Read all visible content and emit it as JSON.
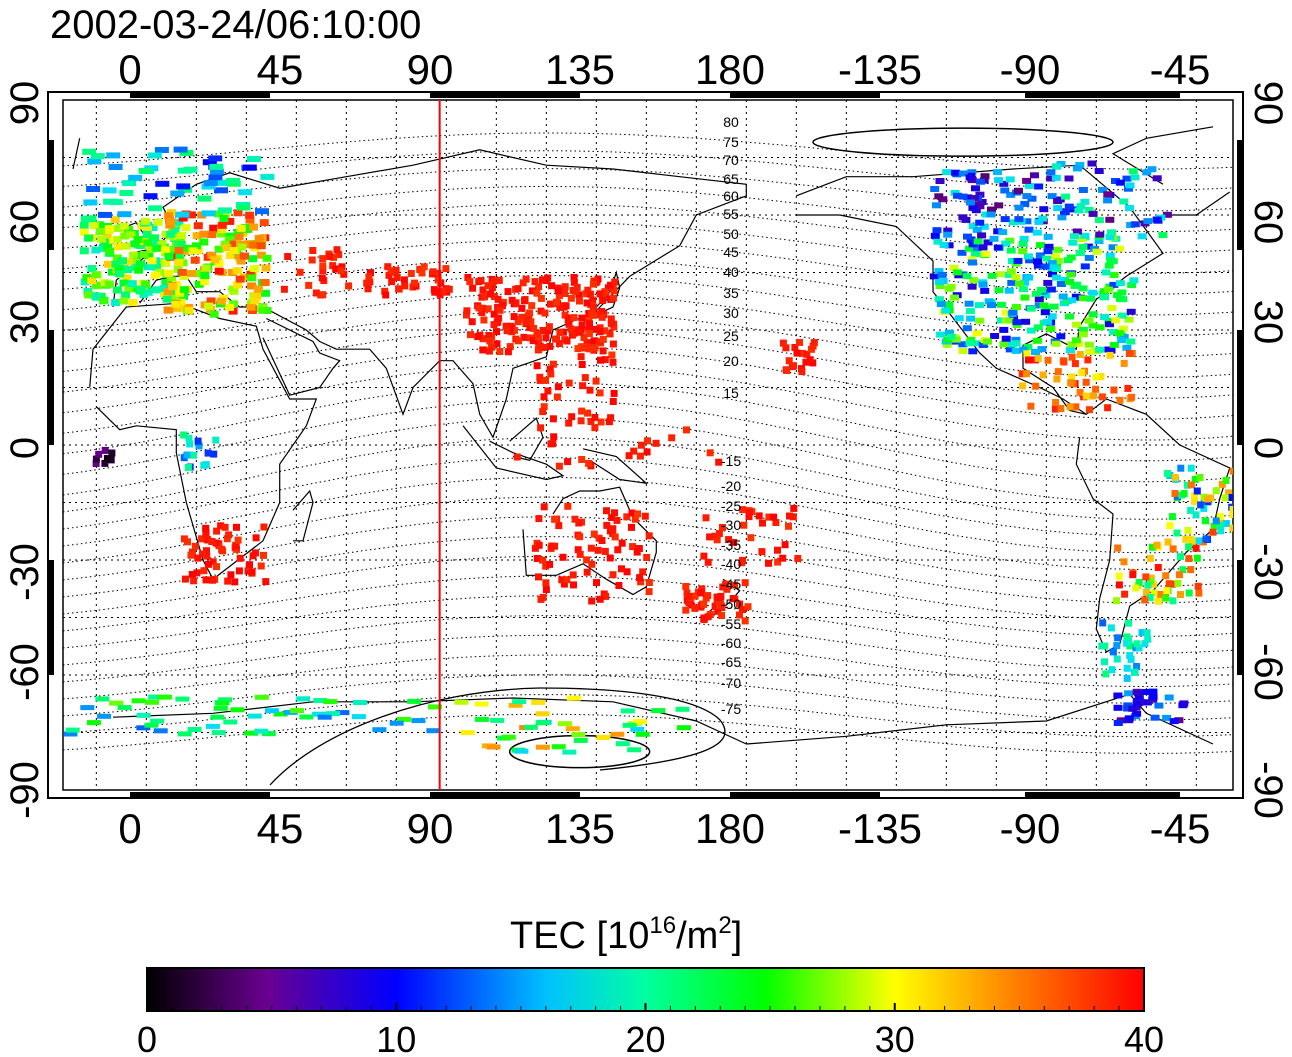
{
  "title": "2002-03-24/06:10:00",
  "map": {
    "top_lon_labels": [
      "0",
      "45",
      "90",
      "135",
      "180",
      "-135",
      "-90",
      "-45"
    ],
    "bottom_lon_labels": [
      "0",
      "45",
      "90",
      "135",
      "180",
      "-135",
      "-90",
      "-45"
    ],
    "left_lat_labels": [
      "90",
      "60",
      "30",
      "0",
      "-30",
      "-60",
      "-90"
    ],
    "right_lat_labels": [
      "90",
      "60",
      "30",
      "0",
      "-30",
      "-60",
      "-90"
    ],
    "north_contour_labels": [
      "80",
      "75",
      "70",
      "65",
      "60",
      "55",
      "50",
      "45",
      "40",
      "35",
      "30",
      "25",
      "20",
      "15"
    ],
    "south_contour_labels": [
      "-15",
      "-20",
      "-25",
      "-30",
      "-35",
      "-40",
      "-45",
      "-50",
      "-55",
      "-60",
      "-65",
      "-70",
      "-75"
    ],
    "subsolar_line_lon": 88,
    "subsolar_line_color": "#ff0000"
  },
  "colorbar": {
    "title_main": "TEC  [10",
    "title_exp": "16",
    "title_unit": "/m",
    "title_unit_exp": "2",
    "title_close": "]",
    "min": 0,
    "max": 40,
    "ticks": [
      "0",
      "10",
      "20",
      "30",
      "40"
    ],
    "colors": [
      "#000000",
      "#6a0090",
      "#0000ff",
      "#00ffff",
      "#00ff00",
      "#ffff00",
      "#ff8000",
      "#ff0000"
    ]
  }
}
